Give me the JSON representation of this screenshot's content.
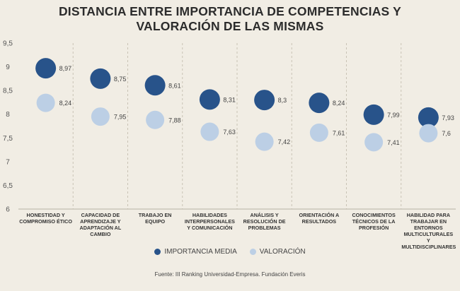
{
  "title_line1": "DISTANCIA ENTRE IMPORTANCIA DE COMPETENCIAS Y",
  "title_line2": "VALORACIÓN DE LAS MISMAS",
  "source": "Fuente: III Ranking Universidad-Empresa. Fundación Everis",
  "colors": {
    "importancia": "#28538a",
    "valoracion": "#bccfe5",
    "grid": "#c9c3b5"
  },
  "chart_data": {
    "type": "scatter",
    "title": "DISTANCIA ENTRE IMPORTANCIA DE COMPETENCIAS Y VALORACIÓN DE LAS MISMAS",
    "categories": [
      "HONESTIDAD Y COMPROMISO ÉTICO",
      "CAPACIDAD DE APRENDIZAJE Y ADAPTACIÓN AL CAMBIO",
      "TRABAJO EN EQUIPO",
      "HABILIDADES INTERPERSONALES Y COMUNICACIÓN",
      "ANÁLISIS Y RESOLUCIÓN DE PROBLEMAS",
      "ORIENTACIÓN A RESULTADOS",
      "CONOCIMIENTOS TÉCNICOS DE LA PROFESIÓN",
      "HABILIDAD PARA TRABAJAR EN ENTORNOS MULTICULTURALES Y MULTIDISCIPLINARES"
    ],
    "series": [
      {
        "name": "IMPORTANCIA MEDIA",
        "values": [
          8.97,
          8.75,
          8.61,
          8.31,
          8.3,
          8.24,
          7.99,
          7.93
        ],
        "labels": [
          "8,97",
          "8,75",
          "8,61",
          "8,31",
          "8,3",
          "8,24",
          "7,99",
          "7,93"
        ]
      },
      {
        "name": "VALORACIÓN",
        "values": [
          8.24,
          7.95,
          7.88,
          7.63,
          7.42,
          7.61,
          7.41,
          7.6
        ],
        "labels": [
          "8,24",
          "7,95",
          "7,88",
          "7,63",
          "7,42",
          "7,61",
          "7,41",
          "7,6"
        ]
      }
    ],
    "yticks": [
      "6",
      "6,5",
      "7",
      "7,5",
      "8",
      "8,5",
      "9",
      "9,5"
    ],
    "ylim": [
      6,
      9.5
    ],
    "grid": "vertical dashed separators",
    "legend": "bottom-center"
  }
}
